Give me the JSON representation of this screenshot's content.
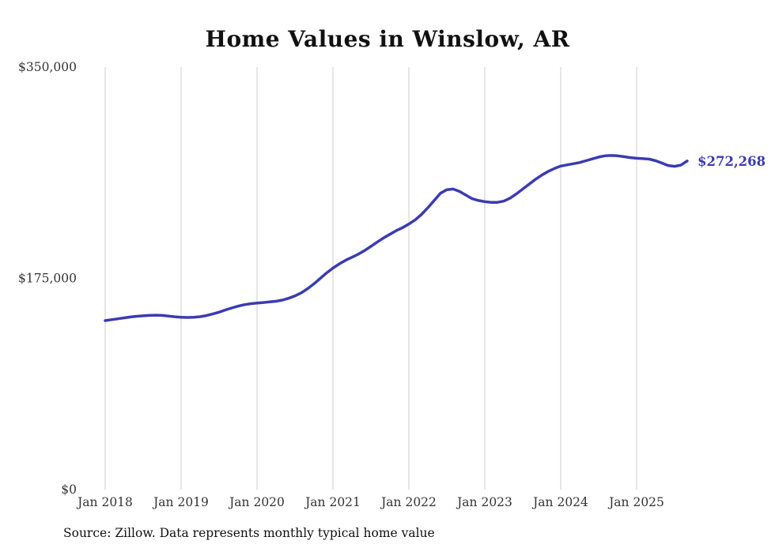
{
  "chart_data": {
    "type": "line",
    "title": "Home Values in Winslow, AR",
    "x_unit": "month",
    "x_start": "2018-01",
    "x_end": "2025-09",
    "x_interval": "1 month",
    "n_points": 93,
    "x_tick_labels": [
      "Jan 2018",
      "Jan 2019",
      "Jan 2020",
      "Jan 2021",
      "Jan 2022",
      "Jan 2023",
      "Jan 2024",
      "Jan 2025"
    ],
    "y_ticks": [
      {
        "label": "$0",
        "value": 0
      },
      {
        "label": "$175,000",
        "value": 175000
      },
      {
        "label": "$350,000",
        "value": 350000
      }
    ],
    "ylim": [
      0,
      350000
    ],
    "grid": "vertical-only",
    "legend": "none",
    "line_color": "#3b3bb3",
    "grid_color": "#cccccc",
    "end_label": "$272,268",
    "series": [
      {
        "name": "Monthly typical home value",
        "values": [
          140000,
          140800,
          141500,
          142300,
          143000,
          143600,
          144000,
          144300,
          144500,
          144300,
          143800,
          143200,
          142800,
          142600,
          142800,
          143300,
          144200,
          145500,
          147000,
          148800,
          150500,
          152000,
          153200,
          154000,
          154500,
          155000,
          155500,
          156000,
          157000,
          158500,
          160500,
          163000,
          166500,
          170500,
          175000,
          179500,
          183500,
          187000,
          190000,
          192500,
          195000,
          198000,
          201500,
          205000,
          208500,
          211500,
          214500,
          217000,
          220000,
          223500,
          228000,
          233500,
          239500,
          245500,
          248500,
          249000,
          247000,
          244000,
          241000,
          239500,
          238500,
          238000,
          238000,
          239000,
          241500,
          245000,
          249000,
          253000,
          257000,
          260500,
          263500,
          266000,
          268000,
          269000,
          270000,
          271000,
          272500,
          274000,
          275500,
          276500,
          276800,
          276500,
          275800,
          275000,
          274500,
          274200,
          273800,
          272500,
          270500,
          268500,
          267800,
          268800,
          272268
        ]
      }
    ]
  },
  "footer": {
    "source": "Source: Zillow. Data represents monthly typical home value"
  }
}
